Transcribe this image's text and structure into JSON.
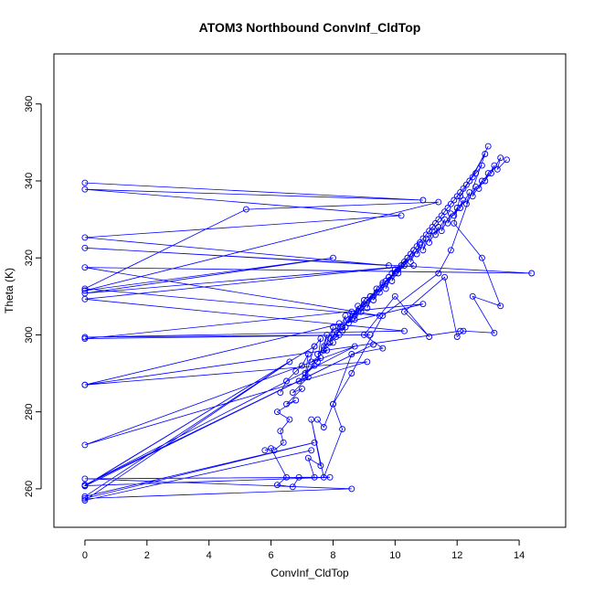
{
  "chart_data": {
    "type": "line",
    "title": "ATOM3 Northbound ConvInf_CldTop",
    "xlabel": "ConvInf_CldTop",
    "ylabel": "Theta (K)",
    "xlim": [
      -1,
      15.5
    ],
    "ylim": [
      250,
      373
    ],
    "x_ticks": [
      "0",
      "2",
      "4",
      "6",
      "8",
      "10",
      "12",
      "14"
    ],
    "y_ticks": [
      "260",
      "280",
      "300",
      "320",
      "340",
      "360"
    ],
    "grid": false,
    "marker": "open-circle",
    "colors": {
      "series": "#0000ff"
    },
    "series": [
      {
        "x": [
          0,
          10.9,
          0,
          10.2,
          0,
          9.8,
          0,
          14.4,
          0,
          9.5,
          0,
          5.2,
          11.4,
          0,
          8.0,
          0,
          10.6,
          0,
          10.3,
          0,
          9.2,
          0,
          10.9,
          0,
          12.1,
          0,
          9.1,
          0,
          8.7,
          0,
          9.3,
          0,
          7.4,
          0,
          7.9,
          0,
          8.6,
          0,
          7.4,
          0,
          6.6,
          0,
          7.3
        ],
        "y": [
          339.5,
          335.0,
          337.8,
          331.0,
          325.3,
          318.0,
          322.6,
          316.0,
          317.5,
          305.0,
          312.0,
          332.6,
          334.5,
          311.5,
          320.0,
          310.8,
          318.0,
          309.3,
          301.0,
          299.4,
          300.0,
          299.0,
          308.0,
          287.0,
          301.0,
          287.0,
          293.0,
          271.4,
          297.0,
          261.0,
          297.5,
          260.7,
          297.0,
          260.8,
          263.0,
          262.6,
          260.0,
          257.5,
          272.0,
          258.0,
          293.0,
          257.0,
          270.0
        ]
      },
      {
        "x": [
          6.3,
          6.5,
          6.8,
          7.0,
          7.2,
          7.1,
          7.4,
          7.6,
          7.5,
          7.8,
          7.7,
          8.0,
          7.9,
          8.2,
          8.1,
          8.4,
          8.3,
          8.6,
          8.5,
          8.8,
          8.7,
          9.0,
          8.9,
          9.2,
          9.1,
          9.4,
          9.3,
          9.6,
          9.5,
          9.8,
          9.7,
          10.0,
          9.9,
          10.2,
          10.1,
          10.4,
          10.3,
          10.6,
          10.5,
          10.8,
          10.7,
          11.0,
          10.9,
          11.2,
          11.1,
          11.4,
          11.3,
          11.6,
          11.5,
          11.8,
          11.7,
          12.0,
          11.9,
          12.2,
          12.1,
          12.4,
          12.3,
          12.6,
          12.5,
          12.8,
          12.7,
          13.0,
          12.9,
          13.2,
          13.1,
          13.4,
          13.3,
          13.6
        ],
        "y": [
          285.0,
          288.0,
          290.5,
          292.0,
          295.0,
          289.0,
          297.0,
          299.0,
          293.0,
          300.0,
          296.0,
          302.0,
          298.0,
          303.0,
          299.5,
          305.0,
          301.0,
          306.0,
          303.0,
          307.5,
          304.0,
          309.0,
          306.0,
          310.0,
          307.0,
          312.0,
          309.0,
          313.5,
          311.0,
          315.0,
          312.0,
          317.0,
          314.0,
          318.0,
          316.0,
          320.0,
          318.0,
          322.0,
          319.0,
          323.5,
          321.0,
          325.0,
          322.0,
          327.0,
          324.0,
          328.0,
          326.0,
          330.0,
          327.0,
          331.5,
          329.0,
          333.0,
          331.0,
          335.0,
          333.0,
          337.0,
          334.0,
          338.5,
          336.0,
          340.0,
          338.0,
          342.0,
          340.0,
          344.0,
          342.0,
          346.0,
          343.0,
          345.5
        ]
      },
      {
        "x": [
          6.1,
          6.4,
          6.3,
          6.6,
          6.2,
          6.8,
          6.5,
          7.0,
          6.7,
          7.2,
          6.9,
          7.4,
          7.1,
          7.6,
          7.3,
          7.8,
          7.5,
          8.0,
          7.7,
          8.2,
          7.9,
          8.4,
          8.1,
          8.6,
          8.3,
          8.8,
          8.5,
          9.0,
          8.7,
          9.2,
          8.9,
          9.4,
          9.1,
          9.6,
          9.3,
          9.8,
          9.5,
          10.0,
          9.7,
          10.2,
          9.9,
          10.4,
          10.1,
          10.6,
          10.3,
          10.8,
          10.5,
          11.0,
          10.7,
          11.2,
          10.9,
          11.4,
          11.1,
          11.6,
          11.3,
          11.8,
          11.5,
          12.0,
          11.7,
          12.2,
          11.9,
          12.4,
          12.1,
          12.6,
          12.3,
          12.8,
          12.5,
          13.0
        ],
        "y": [
          270.0,
          272.0,
          275.0,
          278.0,
          280.0,
          283.0,
          282.0,
          286.0,
          285.0,
          289.0,
          288.0,
          292.0,
          290.0,
          294.0,
          293.0,
          296.0,
          295.0,
          298.0,
          297.0,
          300.0,
          299.0,
          302.0,
          301.0,
          304.0,
          302.0,
          306.0,
          304.0,
          308.0,
          305.0,
          310.0,
          307.0,
          311.0,
          309.0,
          313.0,
          310.0,
          315.0,
          312.0,
          316.0,
          314.0,
          318.0,
          316.0,
          320.0,
          317.0,
          322.0,
          319.0,
          324.0,
          321.0,
          326.0,
          323.0,
          328.0,
          325.0,
          330.0,
          327.0,
          332.0,
          329.0,
          334.0,
          331.0,
          336.0,
          333.0,
          338.0,
          335.0,
          340.0,
          337.0,
          342.0,
          339.0,
          344.0,
          341.0,
          349.0
        ]
      },
      {
        "x": [
          5.8,
          6.0,
          6.5,
          6.2,
          6.7,
          6.9,
          7.4,
          7.2,
          7.6,
          7.3,
          7.7,
          8.3,
          8.0,
          8.6,
          9.6,
          9.0,
          10.0,
          11.1,
          10.3,
          11.6,
          12.0,
          12.2,
          13.2,
          12.5,
          13.4,
          12.8,
          11.9,
          12.1,
          12.9,
          11.8,
          11.4,
          9.6,
          8.6,
          8.0,
          7.7,
          7.5
        ],
        "y": [
          270.0,
          270.5,
          263.0,
          261.0,
          260.5,
          263.0,
          263.0,
          268.0,
          266.0,
          278.0,
          263.0,
          275.5,
          282.0,
          295.0,
          296.5,
          300.0,
          310.0,
          299.5,
          306.0,
          315.0,
          299.5,
          301.0,
          300.5,
          310.0,
          307.5,
          320.0,
          329.0,
          336.0,
          347.0,
          322.0,
          316.0,
          305.0,
          290.0,
          282.0,
          276.0,
          278.0
        ]
      }
    ]
  }
}
